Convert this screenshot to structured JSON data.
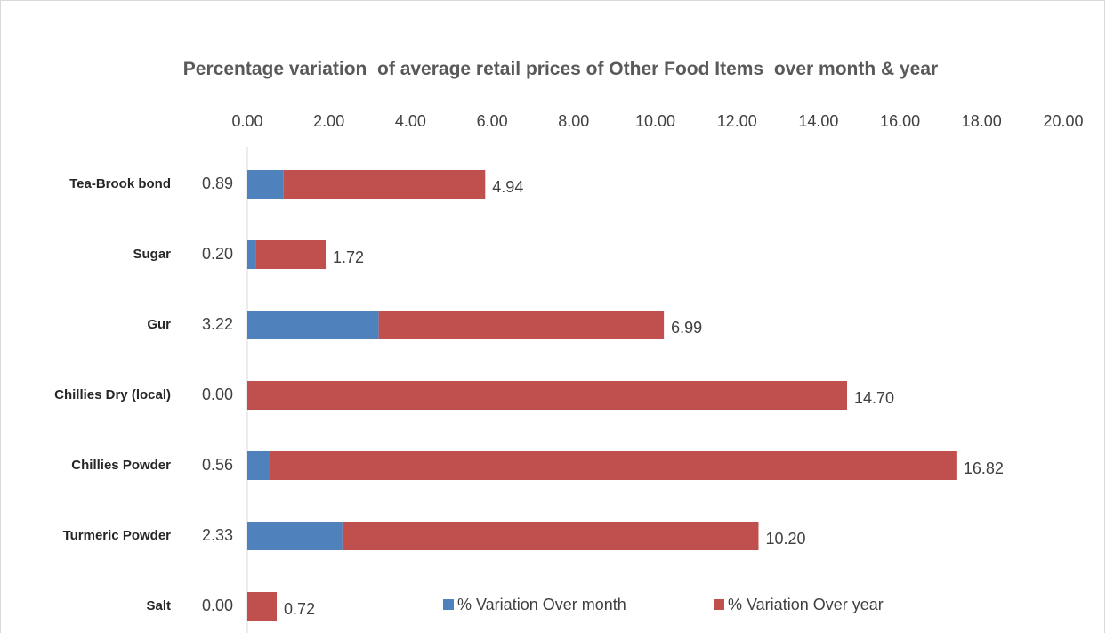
{
  "chart_data": {
    "type": "stacked-bar-horizontal",
    "title": "Percentage variation  of average retail prices of Other Food Items  over month & year",
    "categories": [
      "Tea-Brook bond",
      "Sugar",
      "Gur",
      "Chillies Dry (local)",
      "Chillies Powder",
      "Turmeric Powder",
      "Salt"
    ],
    "series": [
      {
        "name": "% Variation Over month",
        "color": "#4f81bd",
        "values": [
          0.89,
          0.2,
          3.22,
          0,
          0.56,
          2.33,
          0
        ],
        "value_labels": [
          "0.89",
          "0.20",
          "3.22",
          "0.00",
          "0.56",
          "2.33",
          "0.00"
        ]
      },
      {
        "name": "% Variation Over year",
        "color": "#c0504d",
        "values": [
          4.94,
          1.72,
          6.99,
          14.7,
          16.82,
          10.2,
          0.72
        ],
        "value_labels": [
          "4.94",
          "1.72",
          "6.99",
          "14.70",
          "16.82",
          "10.20",
          "0.72"
        ]
      }
    ],
    "xlim": [
      0,
      20
    ],
    "xticks": [
      {
        "value": 0,
        "label": "0.00"
      },
      {
        "value": 2,
        "label": "2.00"
      },
      {
        "value": 4,
        "label": "4.00"
      },
      {
        "value": 6,
        "label": "6.00"
      },
      {
        "value": 8,
        "label": "8.00"
      },
      {
        "value": 10,
        "label": "10.00"
      },
      {
        "value": 12,
        "label": "12.00"
      },
      {
        "value": 14,
        "label": "14.00"
      },
      {
        "value": 16,
        "label": "16.00"
      },
      {
        "value": 18,
        "label": "18.00"
      },
      {
        "value": 20,
        "label": "20.00"
      }
    ],
    "legend": "bottom-right"
  }
}
